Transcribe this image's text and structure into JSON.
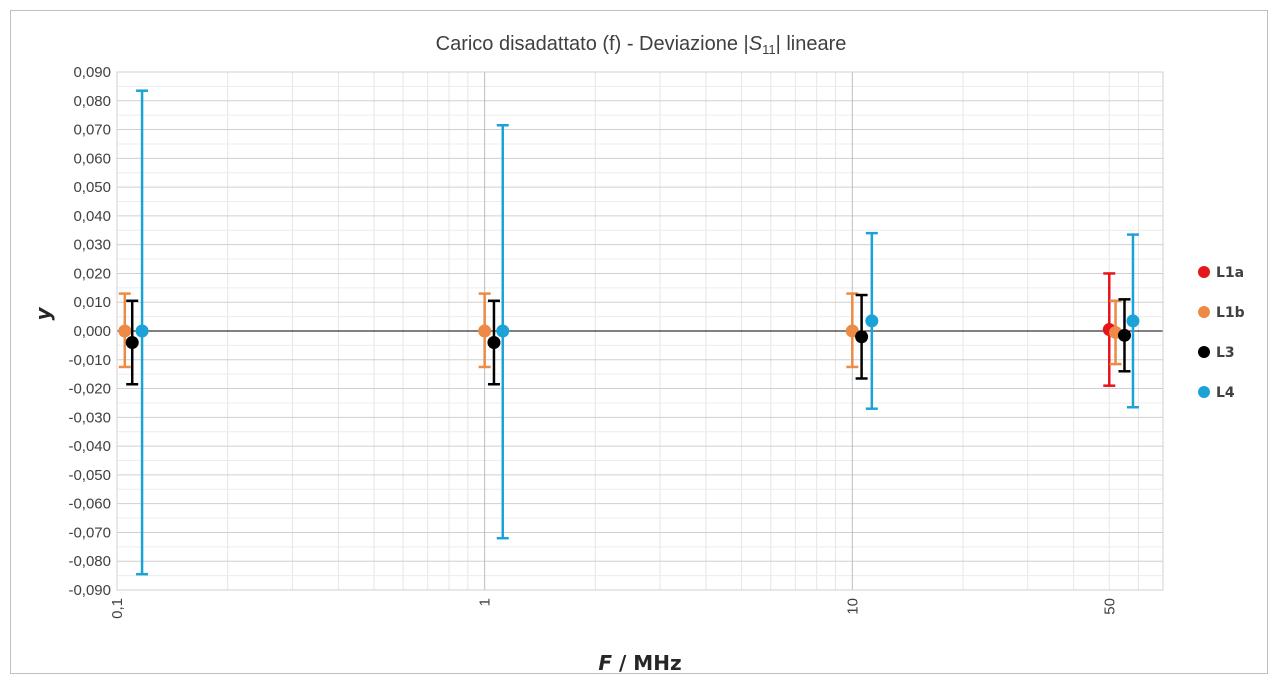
{
  "chart_data": {
    "type": "scatter",
    "title": {
      "prefix": "Carico disadattato (f) - Deviazione |",
      "symbol": "S",
      "subscript": "11",
      "suffix": "| lineare"
    },
    "xlabel": {
      "italic": "F",
      "rest": " / MHz"
    },
    "ylabel": "y",
    "x_scale": "log",
    "xlim": [
      0.1,
      70
    ],
    "ylim": [
      -0.09,
      0.09
    ],
    "y_step": 0.01,
    "grid": true,
    "legend_position": "right",
    "x_ticks": [
      {
        "value": 0.1,
        "label": "0,1"
      },
      {
        "value": 1,
        "label": "1"
      },
      {
        "value": 10,
        "label": "10"
      },
      {
        "value": 50,
        "label": "50"
      }
    ],
    "y_ticks": [
      "0,090",
      "0,080",
      "0,070",
      "0,060",
      "0,050",
      "0,040",
      "0,030",
      "0,020",
      "0,010",
      "0,000",
      "-0,010",
      "-0,020",
      "-0,030",
      "-0,040",
      "-0,050",
      "-0,060",
      "-0,070",
      "-0,080",
      "-0,090"
    ],
    "series": [
      {
        "name": "L1a",
        "color": "#e8141b",
        "points": [
          {
            "x": 50,
            "y": 0.0005,
            "err_low": 0.0195,
            "err_high": 0.0195
          }
        ]
      },
      {
        "name": "L1b",
        "color": "#ed8a45",
        "points": [
          {
            "x": 0.105,
            "y": 0.0,
            "err_low": 0.0125,
            "err_high": 0.013
          },
          {
            "x": 1.0,
            "y": 0.0,
            "err_low": 0.0125,
            "err_high": 0.013
          },
          {
            "x": 10.0,
            "y": 0.0,
            "err_low": 0.0125,
            "err_high": 0.013
          },
          {
            "x": 52,
            "y": -0.0005,
            "err_low": 0.011,
            "err_high": 0.011
          }
        ]
      },
      {
        "name": "L3",
        "color": "#000000",
        "points": [
          {
            "x": 0.11,
            "y": -0.004,
            "err_low": 0.0145,
            "err_high": 0.0145
          },
          {
            "x": 1.06,
            "y": -0.004,
            "err_low": 0.0145,
            "err_high": 0.0145
          },
          {
            "x": 10.6,
            "y": -0.002,
            "err_low": 0.0145,
            "err_high": 0.0145
          },
          {
            "x": 55,
            "y": -0.0015,
            "err_low": 0.0125,
            "err_high": 0.0125
          }
        ]
      },
      {
        "name": "L4",
        "color": "#1ba3d8",
        "points": [
          {
            "x": 0.117,
            "y": 0.0,
            "err_low": 0.0845,
            "err_high": 0.0835
          },
          {
            "x": 1.12,
            "y": 0.0,
            "err_low": 0.072,
            "err_high": 0.0715
          },
          {
            "x": 11.3,
            "y": 0.0035,
            "err_low": 0.0305,
            "err_high": 0.0305
          },
          {
            "x": 58,
            "y": 0.0035,
            "err_low": 0.03,
            "err_high": 0.03
          }
        ]
      }
    ]
  }
}
